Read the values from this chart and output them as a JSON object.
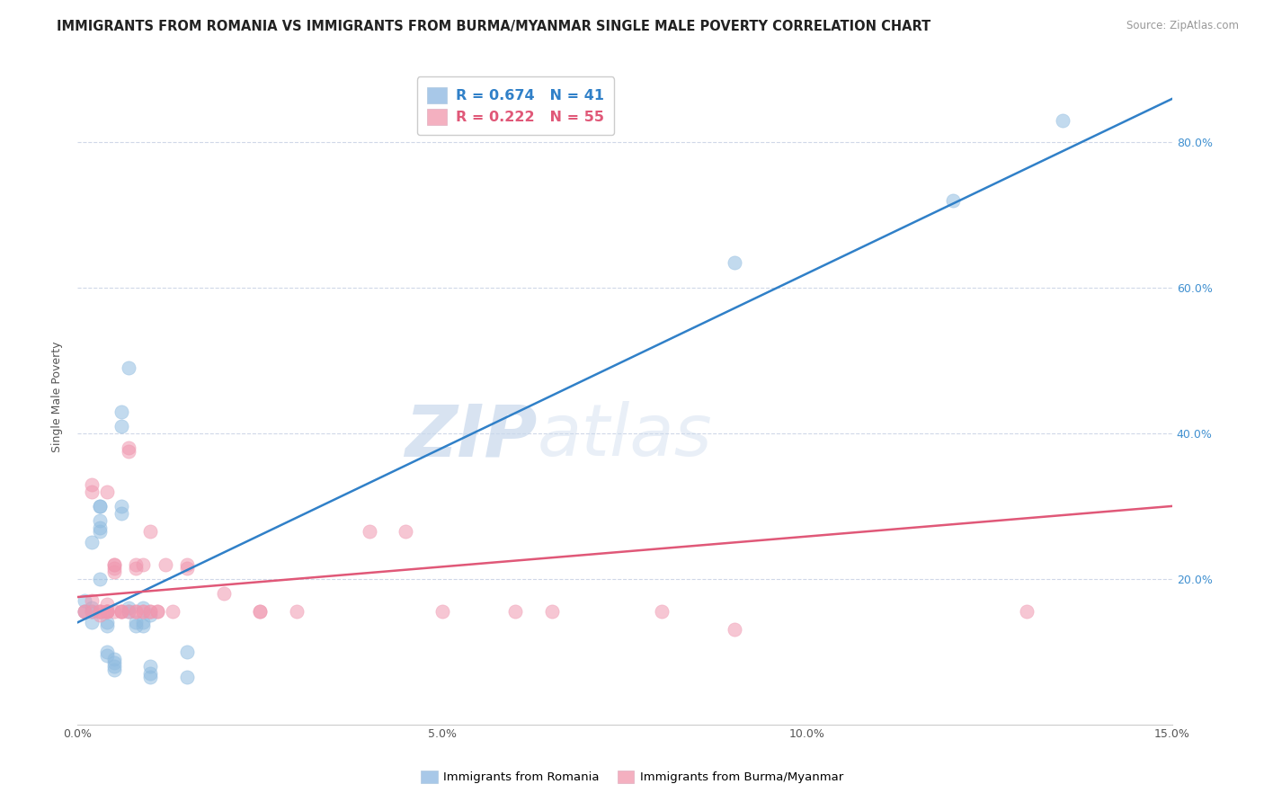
{
  "title": "IMMIGRANTS FROM ROMANIA VS IMMIGRANTS FROM BURMA/MYANMAR SINGLE MALE POVERTY CORRELATION CHART",
  "source": "Source: ZipAtlas.com",
  "ylabel": "Single Male Poverty",
  "legend": {
    "romania": {
      "R": 0.674,
      "N": 41,
      "color": "#a8c8e8"
    },
    "burma": {
      "R": 0.222,
      "N": 55,
      "color": "#f4b0c0"
    }
  },
  "romania_color": "#90bce0",
  "burma_color": "#f098b0",
  "romania_line_color": "#3080c8",
  "burma_line_color": "#e05878",
  "romania_scatter": [
    [
      0.001,
      0.155
    ],
    [
      0.001,
      0.17
    ],
    [
      0.002,
      0.155
    ],
    [
      0.002,
      0.16
    ],
    [
      0.002,
      0.14
    ],
    [
      0.002,
      0.25
    ],
    [
      0.003,
      0.265
    ],
    [
      0.003,
      0.2
    ],
    [
      0.003,
      0.28
    ],
    [
      0.003,
      0.3
    ],
    [
      0.003,
      0.3
    ],
    [
      0.003,
      0.27
    ],
    [
      0.004,
      0.135
    ],
    [
      0.004,
      0.14
    ],
    [
      0.004,
      0.1
    ],
    [
      0.004,
      0.095
    ],
    [
      0.005,
      0.085
    ],
    [
      0.005,
      0.09
    ],
    [
      0.005,
      0.075
    ],
    [
      0.005,
      0.08
    ],
    [
      0.006,
      0.3
    ],
    [
      0.006,
      0.29
    ],
    [
      0.006,
      0.41
    ],
    [
      0.006,
      0.43
    ],
    [
      0.007,
      0.49
    ],
    [
      0.007,
      0.155
    ],
    [
      0.007,
      0.16
    ],
    [
      0.008,
      0.135
    ],
    [
      0.008,
      0.14
    ],
    [
      0.009,
      0.14
    ],
    [
      0.009,
      0.135
    ],
    [
      0.009,
      0.16
    ],
    [
      0.01,
      0.15
    ],
    [
      0.01,
      0.07
    ],
    [
      0.01,
      0.065
    ],
    [
      0.01,
      0.08
    ],
    [
      0.015,
      0.065
    ],
    [
      0.015,
      0.1
    ],
    [
      0.09,
      0.635
    ],
    [
      0.12,
      0.72
    ],
    [
      0.135,
      0.83
    ]
  ],
  "burma_scatter": [
    [
      0.001,
      0.155
    ],
    [
      0.001,
      0.155
    ],
    [
      0.002,
      0.155
    ],
    [
      0.002,
      0.17
    ],
    [
      0.002,
      0.32
    ],
    [
      0.002,
      0.33
    ],
    [
      0.003,
      0.155
    ],
    [
      0.003,
      0.155
    ],
    [
      0.003,
      0.15
    ],
    [
      0.003,
      0.155
    ],
    [
      0.004,
      0.155
    ],
    [
      0.004,
      0.165
    ],
    [
      0.004,
      0.155
    ],
    [
      0.004,
      0.32
    ],
    [
      0.004,
      0.155
    ],
    [
      0.004,
      0.155
    ],
    [
      0.005,
      0.22
    ],
    [
      0.005,
      0.155
    ],
    [
      0.005,
      0.22
    ],
    [
      0.005,
      0.215
    ],
    [
      0.005,
      0.21
    ],
    [
      0.006,
      0.155
    ],
    [
      0.006,
      0.155
    ],
    [
      0.006,
      0.155
    ],
    [
      0.007,
      0.38
    ],
    [
      0.007,
      0.375
    ],
    [
      0.007,
      0.155
    ],
    [
      0.008,
      0.155
    ],
    [
      0.008,
      0.155
    ],
    [
      0.008,
      0.22
    ],
    [
      0.008,
      0.215
    ],
    [
      0.009,
      0.155
    ],
    [
      0.009,
      0.155
    ],
    [
      0.009,
      0.22
    ],
    [
      0.01,
      0.265
    ],
    [
      0.01,
      0.155
    ],
    [
      0.01,
      0.155
    ],
    [
      0.011,
      0.155
    ],
    [
      0.011,
      0.155
    ],
    [
      0.012,
      0.22
    ],
    [
      0.013,
      0.155
    ],
    [
      0.015,
      0.22
    ],
    [
      0.015,
      0.215
    ],
    [
      0.02,
      0.18
    ],
    [
      0.025,
      0.155
    ],
    [
      0.025,
      0.155
    ],
    [
      0.03,
      0.155
    ],
    [
      0.04,
      0.265
    ],
    [
      0.045,
      0.265
    ],
    [
      0.05,
      0.155
    ],
    [
      0.06,
      0.155
    ],
    [
      0.065,
      0.155
    ],
    [
      0.08,
      0.155
    ],
    [
      0.09,
      0.13
    ],
    [
      0.13,
      0.155
    ]
  ],
  "watermark_zip": "ZIP",
  "watermark_atlas": "atlas",
  "xlim": [
    0,
    0.15
  ],
  "ylim": [
    0,
    0.9
  ],
  "ytick_vals": [
    0.2,
    0.4,
    0.6,
    0.8
  ],
  "xtick_vals": [
    0.0,
    0.05,
    0.1,
    0.15
  ],
  "background_color": "#ffffff",
  "grid_color": "#d0d8e8"
}
